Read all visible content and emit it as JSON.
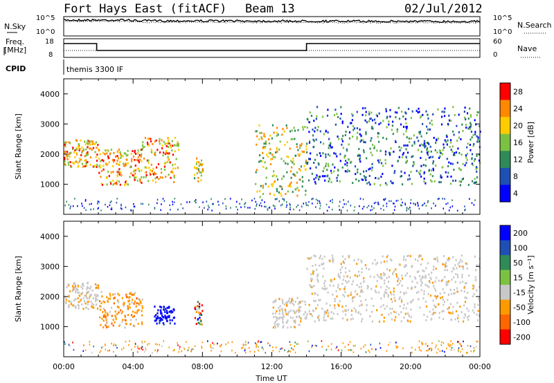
{
  "header": {
    "station": "Fort Hays East (fitACF)",
    "beam": "Beam 13",
    "date": "02/Jul/2012"
  },
  "top_panels": {
    "noise": {
      "left_label": "N.Sky",
      "right_label": "N.Search",
      "left_ticks": [
        "10^5",
        "10^0"
      ],
      "right_ticks": [
        "10^5",
        "10^0"
      ]
    },
    "freq": {
      "left_label_1": "Freq.",
      "left_label_2": "[MHz]",
      "right_label": "Nave",
      "left_ticks": [
        "18",
        "8"
      ],
      "right_ticks": [
        "60",
        "0"
      ]
    },
    "cpid": {
      "label": "CPID",
      "value": "themis 3300 IF"
    }
  },
  "chart_data": [
    {
      "type": "heatmap",
      "title": "",
      "ylabel": "Slant Range [km]",
      "xlabel": "",
      "x_range_hours": [
        0,
        24
      ],
      "ylim": [
        0,
        4500
      ],
      "y_ticks": [
        "1000",
        "2000",
        "3000",
        "4000"
      ],
      "colorbar": {
        "label": "Power [dB]",
        "ticks": [
          "4",
          "8",
          "12",
          "16",
          "20",
          "24",
          "28"
        ],
        "colors": [
          "#0000ff",
          "#1e50b4",
          "#2e8b57",
          "#7cc242",
          "#ffcc00",
          "#ff8800",
          "#ff0000"
        ]
      },
      "echo_regions": [
        {
          "t0": 0.0,
          "t1": 2.0,
          "r0": 1600,
          "r1": 2500,
          "level": "high"
        },
        {
          "t0": 2.0,
          "t1": 4.5,
          "r0": 1000,
          "r1": 2200,
          "level": "high"
        },
        {
          "t0": 4.5,
          "t1": 6.6,
          "r0": 1100,
          "r1": 2600,
          "level": "high"
        },
        {
          "t0": 7.5,
          "t1": 8.0,
          "r0": 1100,
          "r1": 1900,
          "level": "mid"
        },
        {
          "t0": 11.0,
          "t1": 14.0,
          "r0": 600,
          "r1": 3000,
          "level": "mid"
        },
        {
          "t0": 14.0,
          "t1": 24.0,
          "r0": 1000,
          "r1": 3600,
          "level": "low"
        }
      ]
    },
    {
      "type": "heatmap",
      "title": "",
      "ylabel": "Slant Range [km]",
      "xlabel": "Time UT",
      "x_range_hours": [
        0,
        24
      ],
      "ylim": [
        0,
        4500
      ],
      "y_ticks": [
        "1000",
        "2000",
        "3000",
        "4000"
      ],
      "x_ticks": [
        "00:00",
        "04:00",
        "08:00",
        "12:00",
        "16:00",
        "20:00",
        "00:00"
      ],
      "colorbar": {
        "label": "Velocity [m s⁻¹]",
        "ticks": [
          "200",
          "100",
          "50",
          "15",
          "-15",
          "-50",
          "-100",
          "-200"
        ],
        "colors": [
          "#0000ff",
          "#1e50b4",
          "#2e8b57",
          "#7cc242",
          "#c8c8c8",
          "#ff9900",
          "#ff6600",
          "#ff0000"
        ]
      },
      "echo_regions": [
        {
          "t0": 0.0,
          "t1": 2.0,
          "r0": 1600,
          "r1": 2500,
          "level": "ground"
        },
        {
          "t0": 2.0,
          "t1": 4.5,
          "r0": 1000,
          "r1": 2200,
          "level": "negative"
        },
        {
          "t0": 5.2,
          "t1": 6.4,
          "r0": 1100,
          "r1": 1700,
          "level": "strong-positive"
        },
        {
          "t0": 7.5,
          "t1": 8.0,
          "r0": 1100,
          "r1": 1900,
          "level": "mixed"
        },
        {
          "t0": 12.0,
          "t1": 14.0,
          "r0": 1000,
          "r1": 2000,
          "level": "ground"
        },
        {
          "t0": 14.0,
          "t1": 24.0,
          "r0": 1200,
          "r1": 3400,
          "level": "ground"
        }
      ]
    }
  ]
}
